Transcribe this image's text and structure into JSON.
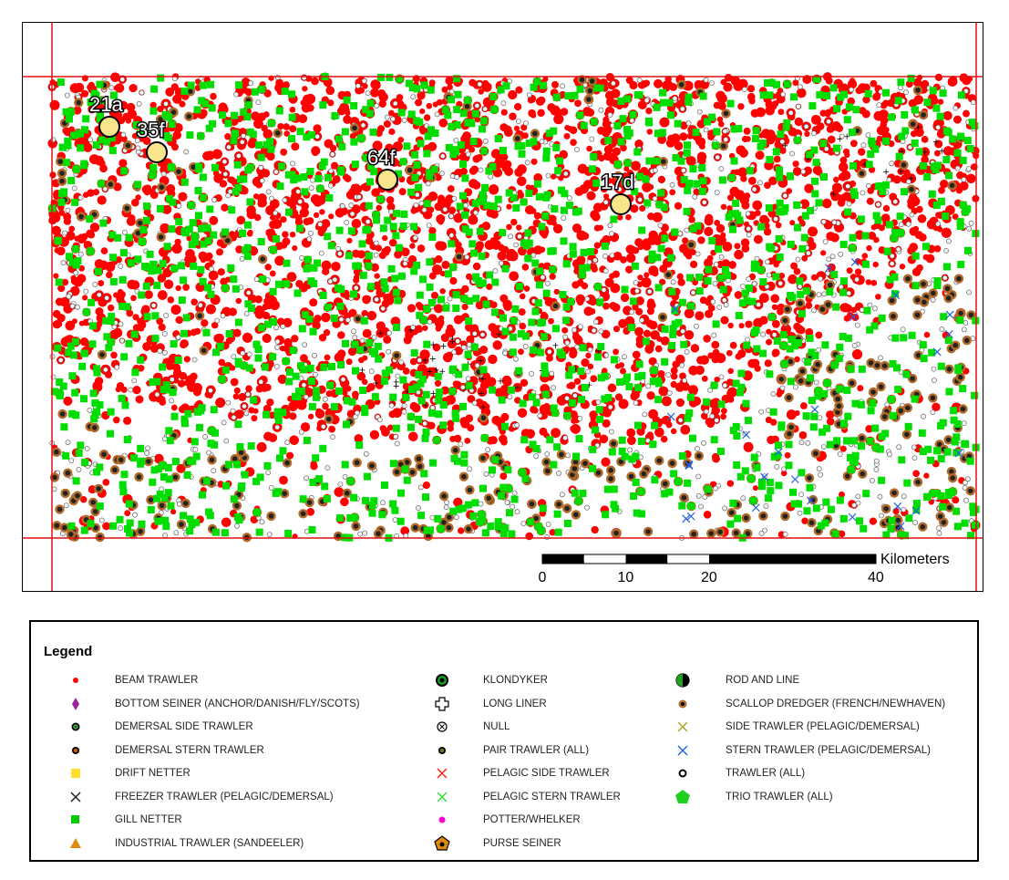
{
  "map": {
    "sites": [
      {
        "label": "21a"
      },
      {
        "label": "35f"
      },
      {
        "label": "64f"
      },
      {
        "label": "17d"
      }
    ],
    "scale_bar": {
      "unit": "Kilometers",
      "ticks": [
        "0",
        "10",
        "20",
        "40"
      ]
    },
    "colors": {
      "beam_trawler": "#ff0000",
      "gill_netter": "#00dd00",
      "scallop_dredger": "#b06a2a",
      "frame_line": "#e01010",
      "site_marker": "#f8e58c"
    }
  },
  "legend": {
    "title": "Legend",
    "items": [
      {
        "label": "BEAM TRAWLER",
        "icon": "red-dot-icon",
        "color": "#ff0000"
      },
      {
        "label": "BOTTOM SEINER (ANCHOR/DANISH/FLY/SCOTS)",
        "icon": "purple-diamond-icon",
        "color": "#a020a0"
      },
      {
        "label": "DEMERSAL SIDE TRAWLER",
        "icon": "green-ring-icon",
        "color": "#008800"
      },
      {
        "label": "DEMERSAL STERN TRAWLER",
        "icon": "orange-ring-icon",
        "color": "#d05a00"
      },
      {
        "label": "DRIFT NETTER",
        "icon": "yellow-square-icon",
        "color": "#ffe030"
      },
      {
        "label": "FREEZER TRAWLER (PELAGIC/DEMERSAL)",
        "icon": "black-x-icon",
        "color": "#222222"
      },
      {
        "label": "GILL NETTER",
        "icon": "green-square-icon",
        "color": "#00cc00"
      },
      {
        "label": "INDUSTRIAL TRAWLER (SANDEELER)",
        "icon": "orange-triangle-icon",
        "color": "#e08a10"
      },
      {
        "label": "KLONDYKER",
        "icon": "green-target-icon",
        "color": "#10a020"
      },
      {
        "label": "LONG LINER",
        "icon": "cross-outline-icon",
        "color": "#000000"
      },
      {
        "label": "NULL",
        "icon": "circled-x-icon",
        "color": "#000000"
      },
      {
        "label": "PAIR TRAWLER (ALL)",
        "icon": "olive-ring-icon",
        "color": "#707020"
      },
      {
        "label": "PELAGIC SIDE TRAWLER",
        "icon": "red-x-icon",
        "color": "#ff2020"
      },
      {
        "label": "PELAGIC STERN TRAWLER",
        "icon": "green-x-icon",
        "color": "#30e030"
      },
      {
        "label": "POTTER/WHELKER",
        "icon": "magenta-dot-icon",
        "color": "#ff00cc"
      },
      {
        "label": "PURSE SEINER",
        "icon": "orange-pentagon-icon",
        "color": "#e08a10"
      },
      {
        "label": "ROD AND LINE",
        "icon": "half-circle-icon",
        "color": "#20a020"
      },
      {
        "label": "SCALLOP DREDGER (FRENCH/NEWHAVEN)",
        "icon": "brown-ring-icon",
        "color": "#b06a2a"
      },
      {
        "label": "SIDE TRAWLER (PELAGIC/DEMERSAL)",
        "icon": "olive-x-icon",
        "color": "#b0a020"
      },
      {
        "label": "STERN TRAWLER (PELAGIC/DEMERSAL)",
        "icon": "blue-x-icon",
        "color": "#2060e0"
      },
      {
        "label": "TRAWLER (ALL)",
        "icon": "black-ring-icon",
        "color": "#000000"
      },
      {
        "label": "TRIO TRAWLER (ALL)",
        "icon": "green-pentagon-icon",
        "color": "#20d020"
      }
    ]
  }
}
